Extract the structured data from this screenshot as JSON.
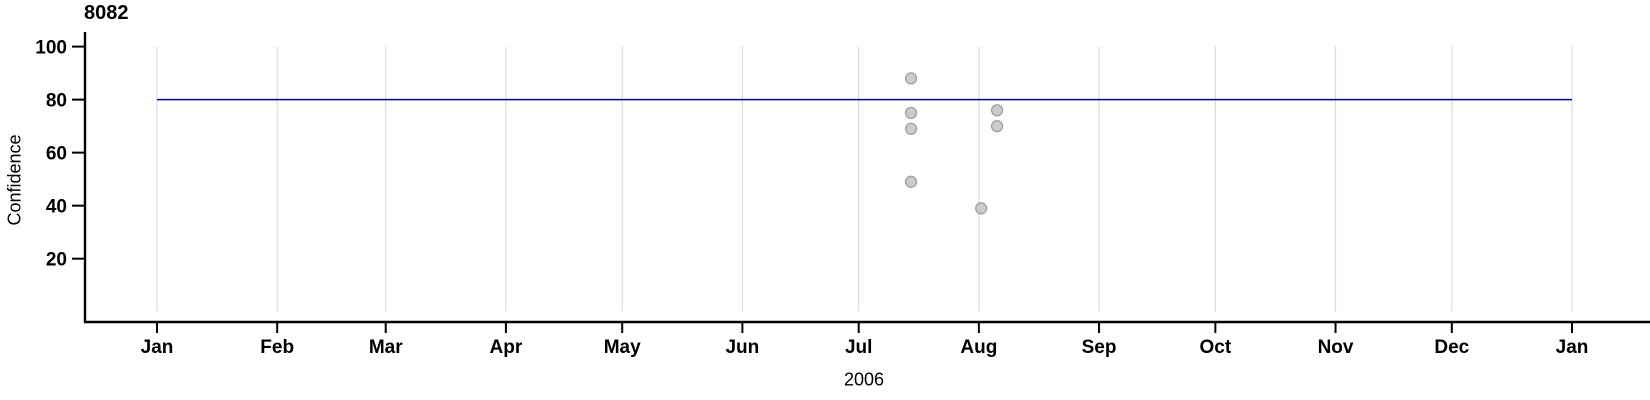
{
  "chart_data": {
    "type": "scatter",
    "title": "8082",
    "xlabel": "2006",
    "ylabel": "Confidence",
    "x_axis": {
      "tick_labels": [
        "Jan",
        "Feb",
        "Mar",
        "Apr",
        "May",
        "Jun",
        "Jul",
        "Aug",
        "Sep",
        "Oct",
        "Nov",
        "Dec",
        "Jan"
      ],
      "tick_days": [
        0,
        31,
        59,
        90,
        120,
        151,
        181,
        212,
        243,
        273,
        304,
        334,
        365
      ],
      "range_days": [
        0,
        365
      ],
      "grid": true
    },
    "y_axis": {
      "ticks": [
        20,
        40,
        60,
        80,
        100
      ],
      "grid_range": [
        0,
        100
      ],
      "grid": false
    },
    "reference_line": {
      "y": 80,
      "span_days": [
        0,
        365
      ],
      "color": "#0000CD"
    },
    "points": [
      {
        "date": "2006-07-14",
        "day": 194.5,
        "value": 88
      },
      {
        "date": "2006-07-14",
        "day": 194.5,
        "value": 75
      },
      {
        "date": "2006-07-14",
        "day": 194.5,
        "value": 69
      },
      {
        "date": "2006-07-14",
        "day": 194.5,
        "value": 49
      },
      {
        "date": "2006-08-01",
        "day": 212.6,
        "value": 39
      },
      {
        "date": "2006-08-05",
        "day": 216.7,
        "value": 76
      },
      {
        "date": "2006-08-05",
        "day": 216.7,
        "value": 70
      }
    ],
    "point_style": {
      "fill": "#CBCBCB",
      "stroke": "#A0A0A0",
      "radius": 5.5
    },
    "colors": {
      "grid": "#DBDBDB",
      "axis": "#000000",
      "reference": "#0000CD",
      "background": "#FFFFFF"
    },
    "legend": null
  }
}
